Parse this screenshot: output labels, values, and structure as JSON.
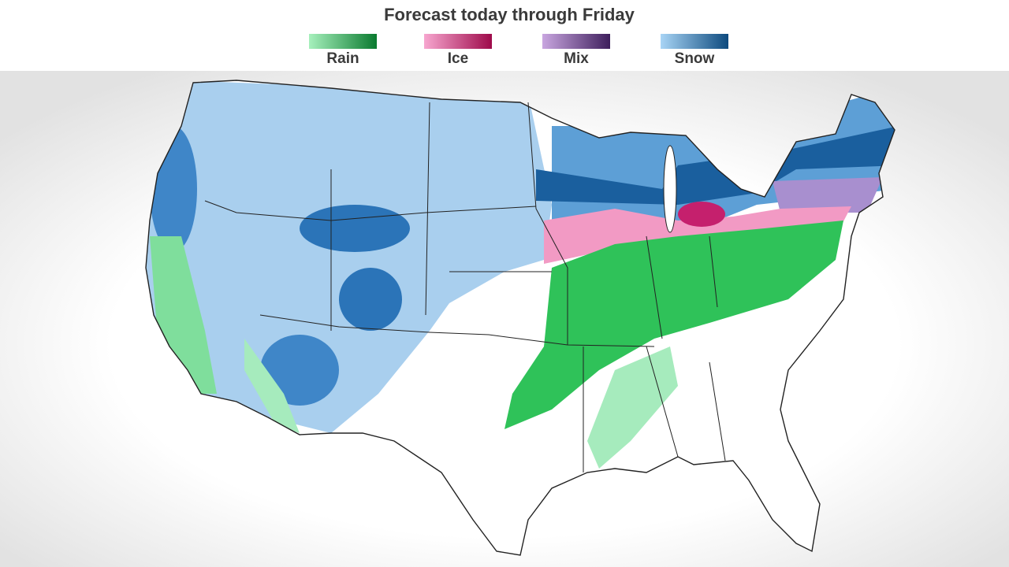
{
  "header": {
    "title": "Forecast today through Friday"
  },
  "legend": {
    "items": [
      {
        "label": "Rain",
        "colors": [
          "#a6f0bc",
          "#0a7a2f"
        ]
      },
      {
        "label": "Ice",
        "colors": [
          "#f7a6cf",
          "#9e0a4a"
        ]
      },
      {
        "label": "Mix",
        "colors": [
          "#c9a6e0",
          "#3e1f5c"
        ]
      },
      {
        "label": "Snow",
        "colors": [
          "#a8d4f5",
          "#0d4a7e"
        ]
      }
    ]
  }
}
